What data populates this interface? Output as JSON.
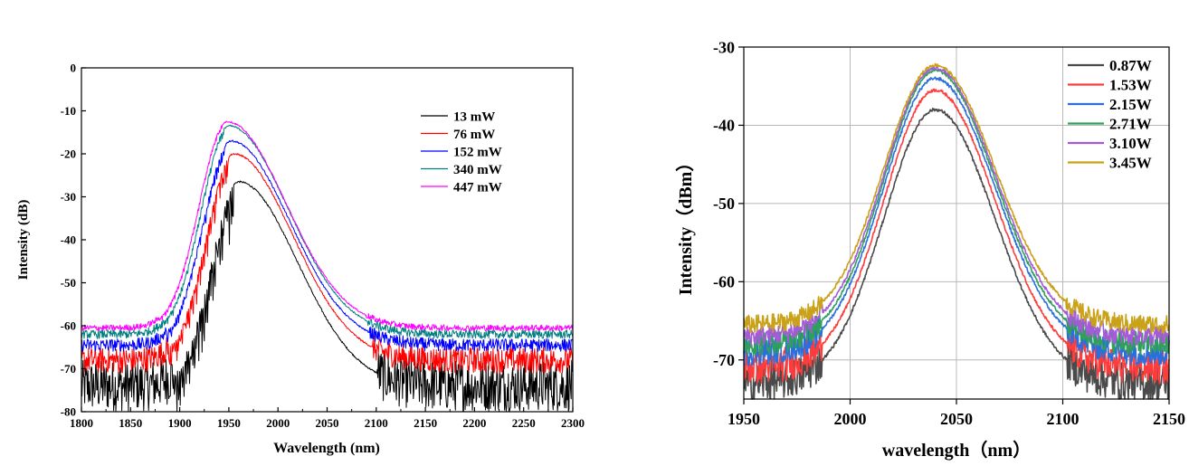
{
  "chart_data": [
    {
      "type": "line",
      "xlabel": "Wavelength (nm)",
      "ylabel": "Intensity (dB)",
      "xlim": [
        1800,
        2300
      ],
      "ylim": [
        -80,
        0
      ],
      "xticks": [
        1800,
        1850,
        1900,
        1950,
        2000,
        2050,
        2100,
        2150,
        2200,
        2250,
        2300
      ],
      "xtick_labels": [
        "1800",
        "1850",
        "1900",
        "1950",
        "2000",
        "2050",
        "2100",
        "2150",
        "2200",
        "2250",
        "2300"
      ],
      "yticks": [
        0,
        -10,
        -20,
        -30,
        -40,
        -50,
        -60,
        -70,
        -80
      ],
      "ytick_labels": [
        "0",
        "-10",
        "-20",
        "-30",
        "-40",
        "-50",
        "-60",
        "-70",
        "-80"
      ],
      "grid": false,
      "legend_position": "top-right",
      "series": [
        {
          "name": "13 mW",
          "color": "#000000",
          "peak_x": 1960,
          "peak_y": -26.5,
          "floor": -74,
          "noise": 6
        },
        {
          "name": "76 mW",
          "color": "#ff0000",
          "peak_x": 1955,
          "peak_y": -20,
          "floor": -68,
          "noise": 3
        },
        {
          "name": "152 mW",
          "color": "#0000ff",
          "peak_x": 1952,
          "peak_y": -17,
          "floor": -64.5,
          "noise": 1.5
        },
        {
          "name": "340 mW",
          "color": "#008080",
          "peak_x": 1950,
          "peak_y": -13.5,
          "floor": -62,
          "noise": 1
        },
        {
          "name": "447 mW",
          "color": "#ff00ff",
          "peak_x": 1948,
          "peak_y": -12.5,
          "floor": -60.5,
          "noise": 0.7
        }
      ]
    },
    {
      "type": "line",
      "xlabel": "wavelength（nm）",
      "ylabel": "Intensity（dBm）",
      "xlim": [
        1950,
        2150
      ],
      "ylim": [
        -75,
        -30
      ],
      "xticks": [
        1950,
        2000,
        2050,
        2100,
        2150
      ],
      "xtick_labels": [
        "1950",
        "2000",
        "2050",
        "2100",
        "2150"
      ],
      "yticks": [
        -30,
        -40,
        -50,
        -60,
        -70
      ],
      "ytick_labels": [
        "-30",
        "-40",
        "-50",
        "-60",
        "-70"
      ],
      "grid": true,
      "legend_position": "top-right",
      "series": [
        {
          "name": "0.87W",
          "color": "#4a4a4a",
          "peak_x": 2040,
          "peak_y": -38,
          "floor": -73,
          "noise": 2.5
        },
        {
          "name": "1.53W",
          "color": "#ff3c3c",
          "peak_x": 2040,
          "peak_y": -35.5,
          "floor": -71,
          "noise": 2.2
        },
        {
          "name": "2.15W",
          "color": "#2a6fdb",
          "peak_x": 2040,
          "peak_y": -34,
          "floor": -69,
          "noise": 1.8
        },
        {
          "name": "2.71W",
          "color": "#2fa05a",
          "peak_x": 2040,
          "peak_y": -33,
          "floor": -68,
          "noise": 1.5
        },
        {
          "name": "3.10W",
          "color": "#a35bd6",
          "peak_x": 2040,
          "peak_y": -32.7,
          "floor": -67,
          "noise": 1.3
        },
        {
          "name": "3.45W",
          "color": "#c9a21a",
          "peak_x": 2040,
          "peak_y": -32.3,
          "floor": -65.5,
          "noise": 1.2
        }
      ]
    }
  ]
}
